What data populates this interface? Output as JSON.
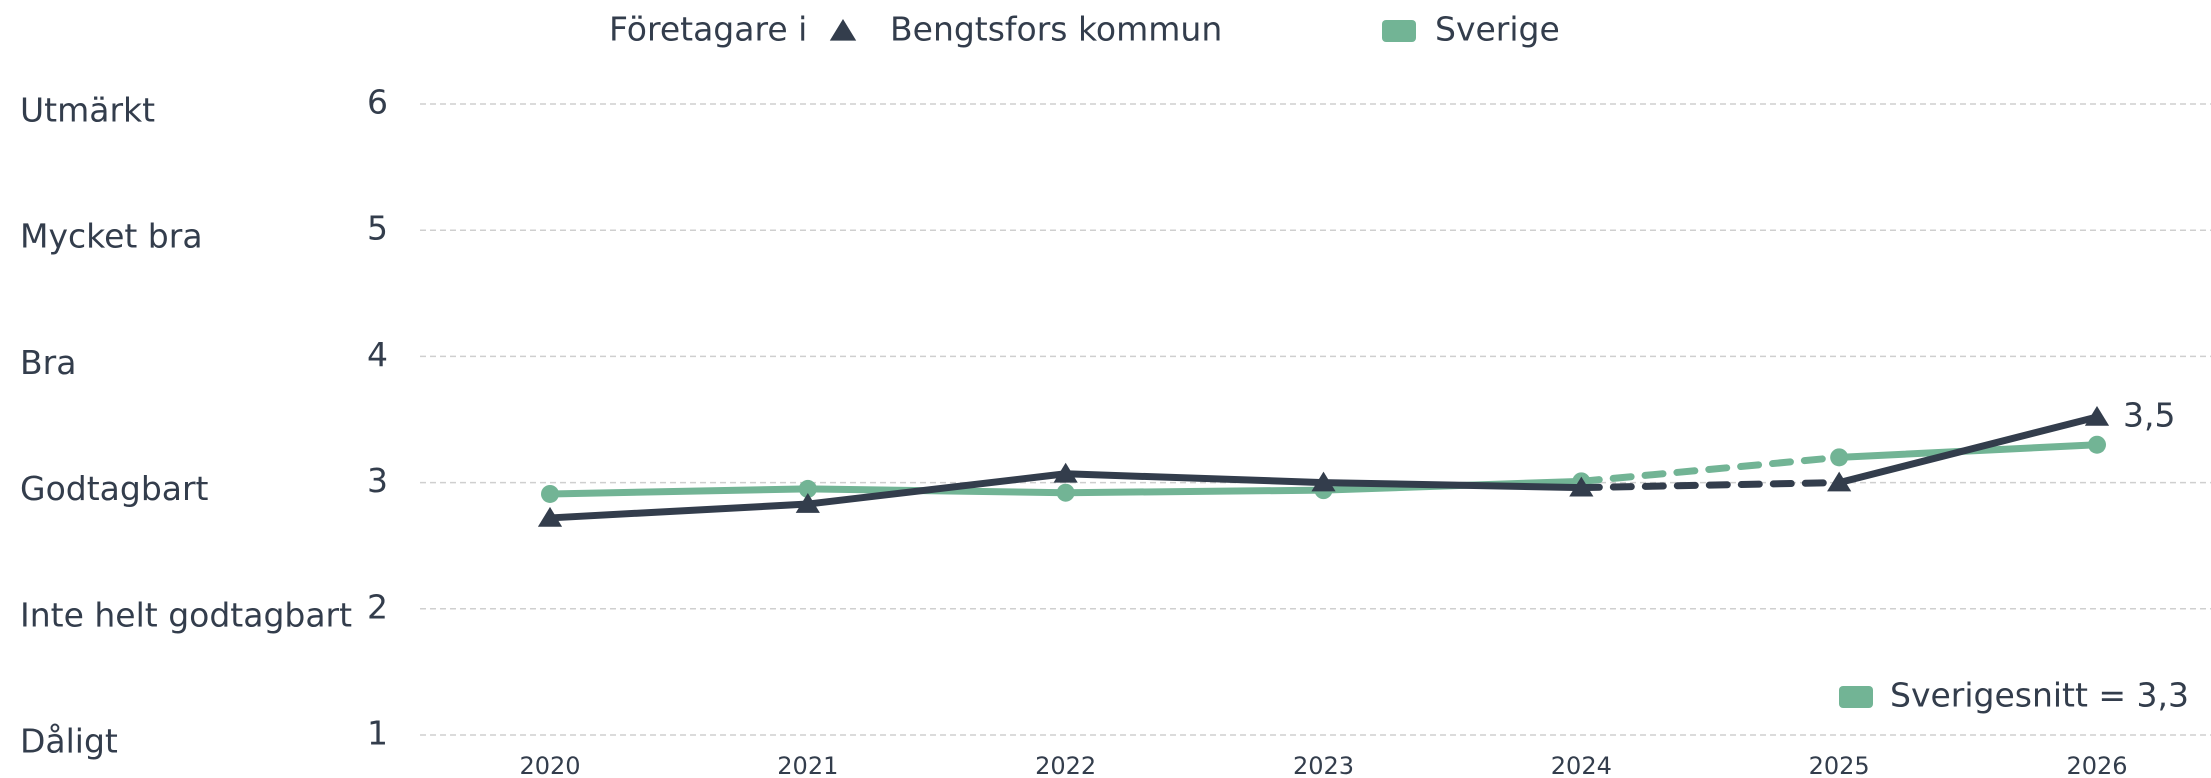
{
  "chart_data": {
    "type": "line",
    "legend_title": "Företagare i",
    "categories": [
      "2020",
      "2021",
      "2022",
      "2023",
      "2024",
      "2025",
      "2026"
    ],
    "series": [
      {
        "name": "Bengtsfors kommun",
        "color": "#333d4c",
        "marker": "triangle",
        "values": [
          2.72,
          2.83,
          3.07,
          3.0,
          2.96,
          3.0,
          3.52
        ],
        "value_labels": [
          null,
          null,
          null,
          null,
          null,
          null,
          "3,5"
        ],
        "dashed_segments": [
          4
        ]
      },
      {
        "name": "Sverige",
        "color": "#72b495",
        "marker": "circle",
        "values": [
          2.91,
          2.95,
          2.92,
          2.94,
          3.01,
          3.2,
          3.3
        ],
        "dashed_segments": [
          4
        ]
      }
    ],
    "ylim": [
      1,
      6
    ],
    "yticks": [
      1,
      2,
      3,
      4,
      5,
      6
    ],
    "ytick_names": [
      "Dåligt",
      "Inte helt godtagbart",
      "Godtagbart",
      "Bra",
      "Mycket bra",
      "Utmärkt"
    ],
    "grid": true,
    "annotation": "Sverigesnitt = 3,3",
    "annotation_color": "#72b495"
  }
}
